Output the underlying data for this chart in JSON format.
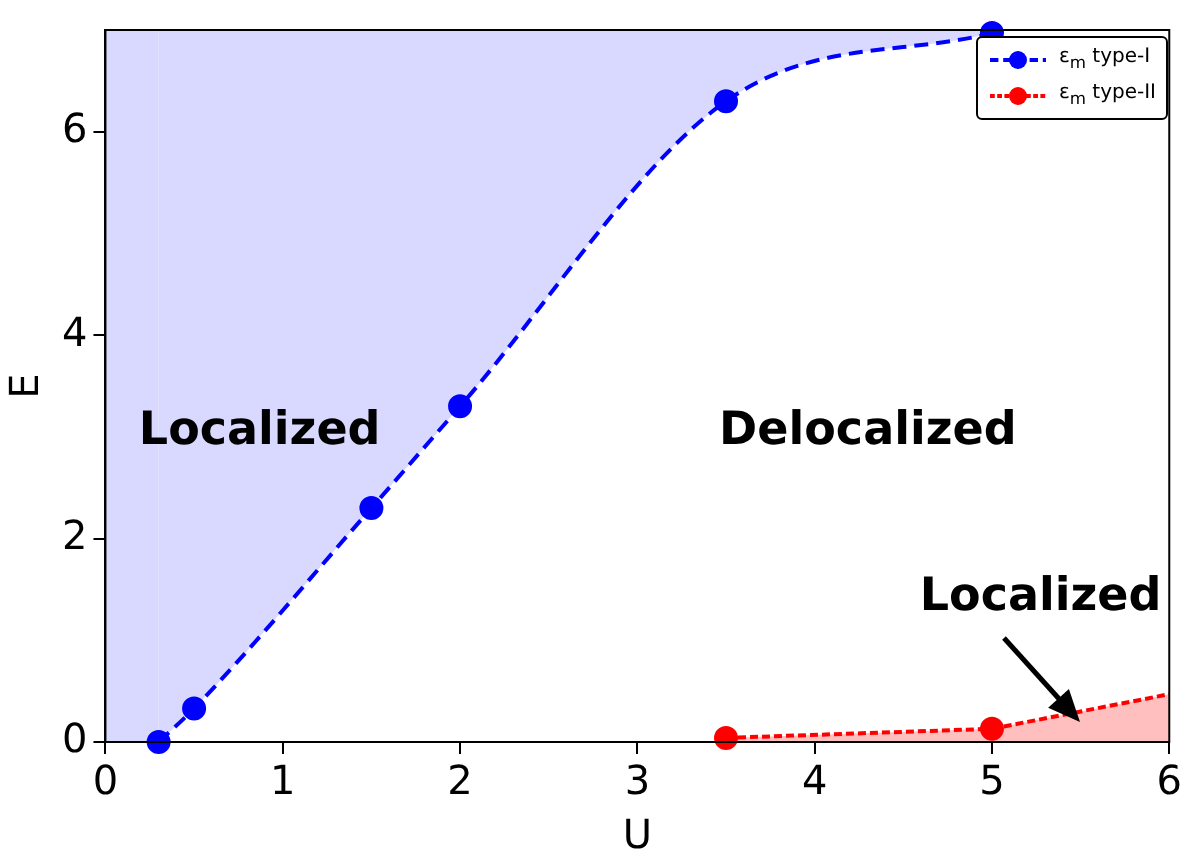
{
  "chart_data": {
    "type": "line",
    "xlabel": "U",
    "ylabel": "E",
    "xlim": [
      0,
      6
    ],
    "xticks": [
      0,
      1,
      2,
      3,
      4,
      5,
      6
    ],
    "ylim": [
      0,
      7
    ],
    "yticks": [
      0,
      2,
      4,
      6
    ],
    "grid": false,
    "legend": "top right",
    "marker": "circle",
    "line_style": "dashed",
    "series": [
      {
        "name": "ε$_{m}$ type-I",
        "color": "#0000ff",
        "x": [
          0.3,
          0.5,
          1.5,
          2,
          3.5,
          5
        ],
        "values": [
          0,
          0.33,
          2.3,
          3.3,
          6.3,
          6.97
        ],
        "lower": [
          0,
          0.33,
          2.3,
          3.3,
          6.3,
          6.97
        ],
        "upper": [
          7,
          7,
          7,
          7,
          7,
          7
        ]
      },
      {
        "name": "ε$_{m}$ type-II",
        "type": "area",
        "color": "#ff0000",
        "line_style": "dotted",
        "x": [
          3.5,
          5
        ],
        "values": [
          0.04,
          0.13
        ]
      },
      {
        "type": "area",
        "color": "#ff0000",
        "line_style": "dotted",
        "marker": "none",
        "x": [
          5,
          6
        ],
        "values": [
          0.13,
          0.47
        ]
      }
    ],
    "bands": [
      {
        "axis": "x",
        "from": 0,
        "to": 0.3,
        "color": "#0000ff"
      }
    ],
    "annotations": [
      "Localized",
      "Delocalized",
      {
        "text": "Localized",
        "x": 5.5,
        "y": 0.2
      }
    ]
  }
}
